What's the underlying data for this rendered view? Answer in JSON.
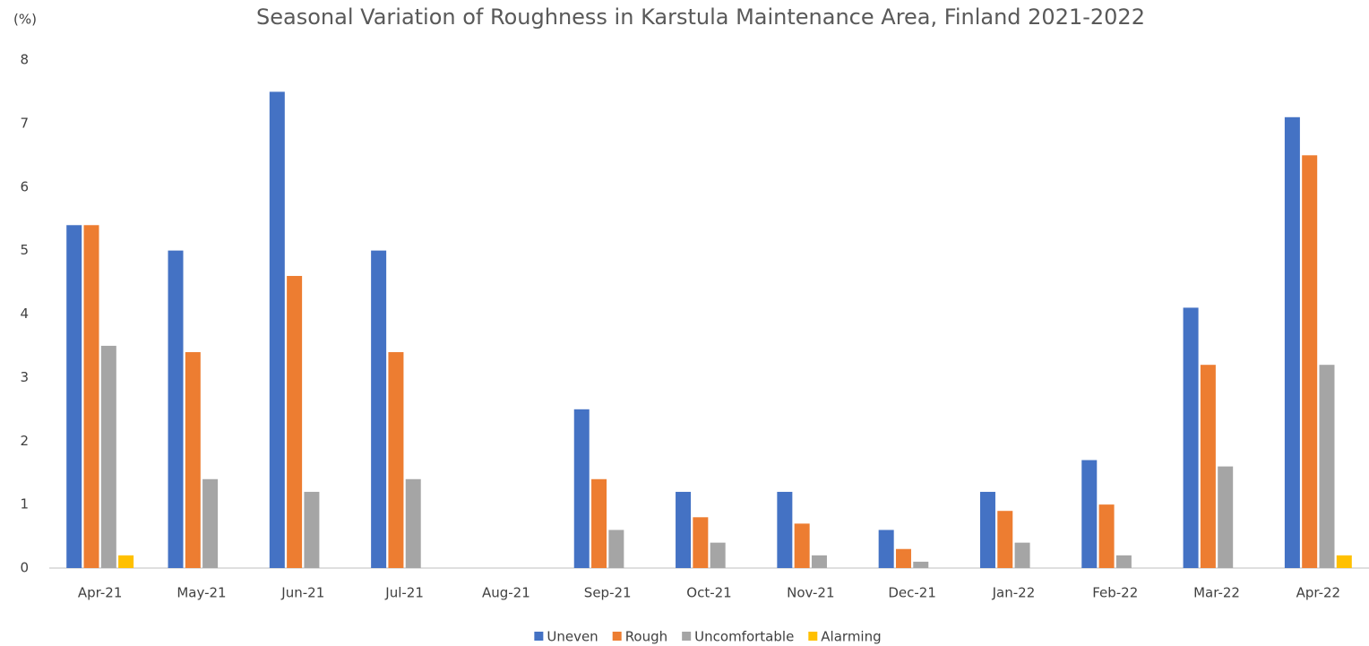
{
  "chart_data": {
    "type": "bar",
    "title": "Seasonal Variation of Roughness in Karstula Maintenance Area, Finland  2021-2022",
    "y_label": "(%)",
    "categories": [
      "Apr-21",
      "May-21",
      "Jun-21",
      "Jul-21",
      "Aug-21",
      "Sep-21",
      "Oct-21",
      "Nov-21",
      "Dec-21",
      "Jan-22",
      "Feb-22",
      "Mar-22",
      "Apr-22"
    ],
    "series": [
      {
        "name": "Uneven",
        "color": "#4472c4",
        "values": [
          5.4,
          5.0,
          7.5,
          5.0,
          0,
          2.5,
          1.2,
          1.2,
          0.6,
          1.2,
          1.7,
          4.1,
          7.1
        ]
      },
      {
        "name": "Rough",
        "color": "#ed7d31",
        "values": [
          5.4,
          3.4,
          4.6,
          3.4,
          0,
          1.4,
          0.8,
          0.7,
          0.3,
          0.9,
          1.0,
          3.2,
          6.5
        ]
      },
      {
        "name": "Uncomfortable",
        "color": "#a5a5a5",
        "values": [
          3.5,
          1.4,
          1.2,
          1.4,
          0,
          0.6,
          0.4,
          0.2,
          0.1,
          0.4,
          0.2,
          1.6,
          3.2
        ]
      },
      {
        "name": "Alarming",
        "color": "#ffc000",
        "values": [
          0.2,
          0,
          0,
          0,
          0,
          0,
          0,
          0,
          0,
          0,
          0,
          0,
          0.2
        ]
      }
    ],
    "ylim": [
      0,
      8
    ],
    "yticks": [
      0,
      1,
      2,
      3,
      4,
      5,
      6,
      7,
      8
    ],
    "grid": false,
    "legend": "bottom"
  }
}
